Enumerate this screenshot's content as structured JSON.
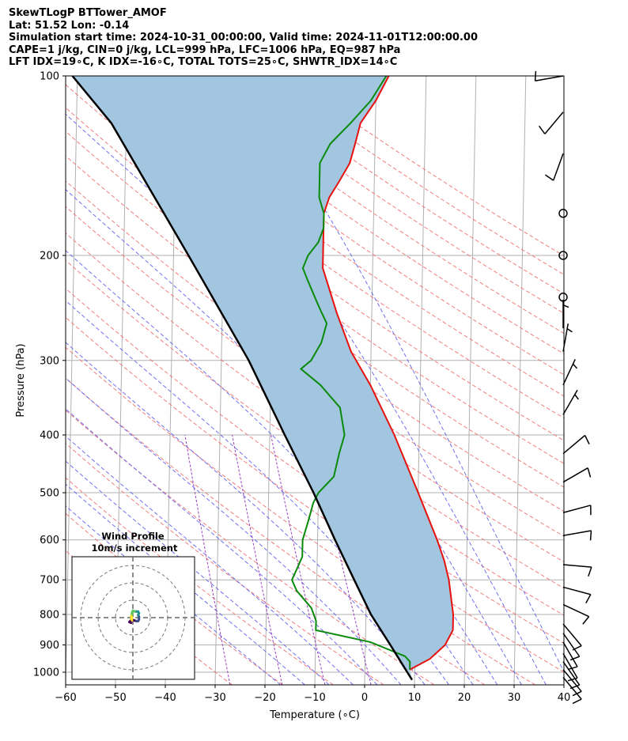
{
  "header": {
    "line1": "SkewTLogP BTTower_AMOF",
    "line2": "Lat: 51.52   Lon: -0.14",
    "line3": "Simulation start time: 2024-10-31_00:00:00, Valid time: 2024-11-01T12:00:00.00",
    "line4": "CAPE=1 j/kg, CIN=0 j/kg, LCL=999 hPa, LFC=1006 hPa, EQ=987 hPa",
    "line5": "LFT IDX=19∘C, K IDX=-16∘C, TOTAL TOTS=25∘C, SHWTR_IDX=14∘C"
  },
  "chart_data": {
    "type": "line",
    "subtype": "skew-T log-P diagram",
    "xlabel": "Temperature (∘C)",
    "ylabel": "Pressure (hPa)",
    "xlim": [
      -60,
      40
    ],
    "ylim": [
      1050,
      100
    ],
    "y_scale": "log",
    "x_ticks": [
      "−60",
      "−50",
      "−40",
      "−30",
      "−20",
      "−10",
      "0",
      "10",
      "20",
      "30",
      "40"
    ],
    "y_ticks": [
      "1000",
      "900",
      "800",
      "700",
      "600",
      "500",
      "400",
      "300",
      "200",
      "100"
    ],
    "grid": true,
    "colors": {
      "temperature": "#e8100c",
      "dewpoint": "#0a8a0a",
      "parcel": "#000000",
      "cape_fill": "#a2c6e0",
      "dry_adiabat": "#f07070",
      "moist_adiabat": "#6060ee",
      "mixing_ratio": "#9b40c0",
      "isotherm": "#b0b0b0"
    },
    "series": [
      {
        "key": "temperature",
        "points": [
          [
            9,
            990
          ],
          [
            13,
            950
          ],
          [
            16,
            900
          ],
          [
            17.5,
            850
          ],
          [
            17.5,
            800
          ],
          [
            16.5,
            700
          ],
          [
            15.5,
            650
          ],
          [
            14,
            600
          ],
          [
            10,
            500
          ],
          [
            5,
            400
          ],
          [
            0,
            330
          ],
          [
            -4,
            290
          ],
          [
            -7,
            250
          ],
          [
            -10,
            210
          ],
          [
            -10,
            180
          ],
          [
            -10,
            170
          ],
          [
            -9,
            160
          ],
          [
            -7,
            150
          ],
          [
            -5,
            140
          ],
          [
            -4,
            130
          ],
          [
            -3,
            120
          ],
          [
            0,
            110
          ],
          [
            2.5,
            100
          ]
        ]
      },
      {
        "key": "dewpoint",
        "points": [
          [
            9,
            990
          ],
          [
            9,
            960
          ],
          [
            8,
            940
          ],
          [
            1,
            890
          ],
          [
            -10,
            850
          ],
          [
            -10,
            820
          ],
          [
            -11,
            780
          ],
          [
            -14,
            730
          ],
          [
            -15,
            700
          ],
          [
            -14,
            670
          ],
          [
            -13,
            640
          ],
          [
            -13,
            600
          ],
          [
            -12,
            560
          ],
          [
            -11,
            520
          ],
          [
            -10,
            500
          ],
          [
            -7,
            470
          ],
          [
            -6,
            430
          ],
          [
            -5,
            400
          ],
          [
            -6,
            360
          ],
          [
            -10,
            330
          ],
          [
            -14,
            310
          ],
          [
            -12,
            300
          ],
          [
            -10,
            280
          ],
          [
            -9,
            260
          ],
          [
            -10,
            250
          ],
          [
            -11,
            240
          ],
          [
            -13,
            220
          ],
          [
            -14,
            210
          ],
          [
            -13,
            200
          ],
          [
            -11,
            190
          ],
          [
            -10,
            180
          ],
          [
            -10,
            170
          ],
          [
            -11,
            160
          ],
          [
            -11,
            150
          ],
          [
            -11,
            140
          ],
          [
            -9,
            130
          ],
          [
            -5,
            120
          ],
          [
            -1,
            110
          ],
          [
            2,
            100
          ]
        ]
      },
      {
        "key": "parcel",
        "points": [
          [
            9.5,
            1030
          ],
          [
            8.5,
            1000
          ],
          [
            5,
            900
          ],
          [
            1,
            800
          ],
          [
            -2.5,
            700
          ],
          [
            -6.5,
            600
          ],
          [
            -11,
            500
          ],
          [
            -17,
            400
          ],
          [
            -24.5,
            300
          ],
          [
            -37,
            200
          ],
          [
            -53,
            120
          ],
          [
            -61,
            100
          ]
        ]
      }
    ],
    "wind_barbs": [
      {
        "p": 100,
        "speed_kt": 10,
        "dir_deg": 260
      },
      {
        "p": 115,
        "speed_kt": 10,
        "dir_deg": 220
      },
      {
        "p": 135,
        "speed_kt": 10,
        "dir_deg": 200
      },
      {
        "p": 170,
        "speed_kt": 0,
        "dir_deg": 0
      },
      {
        "p": 200,
        "speed_kt": 0,
        "dir_deg": 0
      },
      {
        "p": 235,
        "speed_kt": 0,
        "dir_deg": 0
      },
      {
        "p": 265,
        "speed_kt": 5,
        "dir_deg": 0
      },
      {
        "p": 290,
        "speed_kt": 5,
        "dir_deg": 10
      },
      {
        "p": 330,
        "speed_kt": 5,
        "dir_deg": 25
      },
      {
        "p": 370,
        "speed_kt": 5,
        "dir_deg": 30
      },
      {
        "p": 430,
        "speed_kt": 10,
        "dir_deg": 50
      },
      {
        "p": 480,
        "speed_kt": 10,
        "dir_deg": 60
      },
      {
        "p": 540,
        "speed_kt": 10,
        "dir_deg": 75
      },
      {
        "p": 590,
        "speed_kt": 10,
        "dir_deg": 80
      },
      {
        "p": 660,
        "speed_kt": 10,
        "dir_deg": 95
      },
      {
        "p": 720,
        "speed_kt": 10,
        "dir_deg": 105
      },
      {
        "p": 770,
        "speed_kt": 10,
        "dir_deg": 115
      },
      {
        "p": 830,
        "speed_kt": 10,
        "dir_deg": 140
      },
      {
        "p": 860,
        "speed_kt": 10,
        "dir_deg": 145
      },
      {
        "p": 890,
        "speed_kt": 10,
        "dir_deg": 150
      },
      {
        "p": 930,
        "speed_kt": 10,
        "dir_deg": 150
      },
      {
        "p": 960,
        "speed_kt": 10,
        "dir_deg": 145
      },
      {
        "p": 990,
        "speed_kt": 10,
        "dir_deg": 140
      },
      {
        "p": 1020,
        "speed_kt": 10,
        "dir_deg": 140
      }
    ],
    "hodograph": {
      "title": "Wind Profile",
      "subtitle": "10m/s increment",
      "rings_ms": [
        10,
        20,
        30
      ],
      "range_ms": 35,
      "points_uv": [
        [
          -1,
          -3
        ],
        [
          -2,
          -2.5
        ],
        [
          -1,
          -1.5
        ],
        [
          0.5,
          -1.5
        ],
        [
          2,
          -2
        ],
        [
          3,
          -2
        ],
        [
          3.5,
          -1
        ],
        [
          3.5,
          0.5
        ],
        [
          3,
          1.5
        ],
        [
          3.5,
          2.5
        ],
        [
          3,
          3.5
        ],
        [
          2,
          3.5
        ],
        [
          1,
          3.5
        ],
        [
          0,
          4
        ],
        [
          -0.5,
          3
        ],
        [
          -0.5,
          2
        ],
        [
          -1,
          1
        ],
        [
          -0.5,
          0
        ],
        [
          -1,
          -0.5
        ],
        [
          -0.5,
          -1.5
        ]
      ],
      "colormap": [
        "#440154",
        "#3b528b",
        "#21918c",
        "#5ec962",
        "#fde725"
      ]
    }
  }
}
